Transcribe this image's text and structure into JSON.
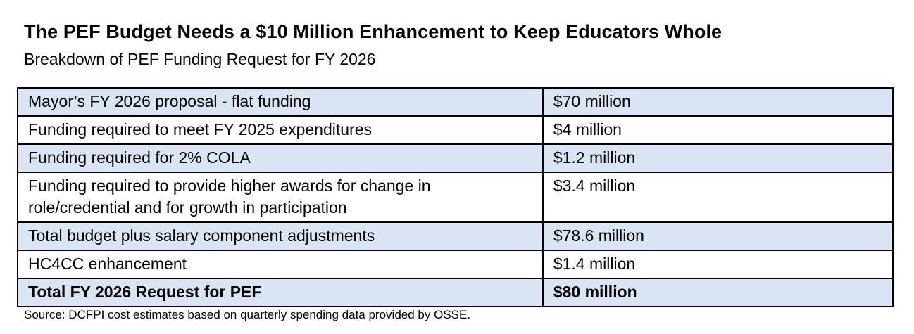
{
  "chart_data": {
    "type": "table",
    "title": "The PEF Budget Needs a $10 Million Enhancement to Keep Educators Whole",
    "subtitle": "Breakdown of PEF Funding Request for FY 2026",
    "rows": [
      {
        "label": "Mayor’s FY 2026 proposal - flat funding",
        "value": "$70 million",
        "value_millions": 70
      },
      {
        "label": "Funding required to meet FY 2025 expenditures",
        "value": "$4 million",
        "value_millions": 4
      },
      {
        "label": "Funding required for 2% COLA",
        "value": "$1.2 million",
        "value_millions": 1.2
      },
      {
        "label": "Funding required to provide higher awards for change in role/credential and for growth in participation",
        "value": "$3.4 million",
        "value_millions": 3.4
      },
      {
        "label": "Total budget plus salary component adjustments",
        "value": "$78.6 million",
        "value_millions": 78.6
      },
      {
        "label": "HC4CC enhancement",
        "value": "$1.4 million",
        "value_millions": 1.4
      },
      {
        "label": "Total FY 2026 Request for PEF",
        "value": "$80 million",
        "value_millions": 80
      }
    ],
    "source": "Source: DCFPI cost estimates based on quarterly spending data provided by OSSE.",
    "colors": {
      "shaded_row": "#dae5f3",
      "plain_row": "#ffffff",
      "border": "#000000"
    }
  }
}
